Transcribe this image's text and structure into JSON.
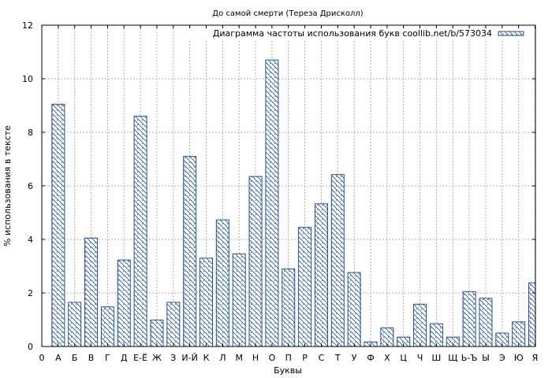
{
  "chart_data": {
    "type": "bar",
    "title": "До самой смерти (Тереза Дрисколл)",
    "xlabel": "Буквы",
    "ylabel": "% использования в тексте",
    "ylim": [
      0,
      12
    ],
    "y_ticks": [
      "0",
      "2",
      "4",
      "6",
      "8",
      "10",
      "12"
    ],
    "x_axis_start_label": "0",
    "grid": true,
    "legend_position": "top-right",
    "categories": [
      "А",
      "Б",
      "В",
      "Г",
      "Д",
      "Е-Ё",
      "Ж",
      "З",
      "И-Й",
      "К",
      "Л",
      "М",
      "Н",
      "О",
      "П",
      "Р",
      "С",
      "Т",
      "У",
      "Ф",
      "Х",
      "Ц",
      "Ч",
      "Ш",
      "Щ",
      "Ь-Ъ",
      "Ы",
      "Э",
      "Ю",
      "Я"
    ],
    "series": [
      {
        "name": "Диаграмма частоты использования букв coollib.net/b/573034",
        "color": "#1f4fa0",
        "values": [
          9.05,
          1.65,
          4.05,
          1.48,
          3.23,
          8.6,
          0.99,
          1.65,
          7.1,
          3.3,
          4.73,
          3.46,
          6.35,
          10.7,
          2.9,
          4.45,
          5.33,
          6.42,
          2.76,
          0.17,
          0.7,
          0.35,
          1.58,
          0.85,
          0.35,
          2.05,
          1.8,
          0.5,
          0.92,
          2.38
        ]
      }
    ]
  }
}
